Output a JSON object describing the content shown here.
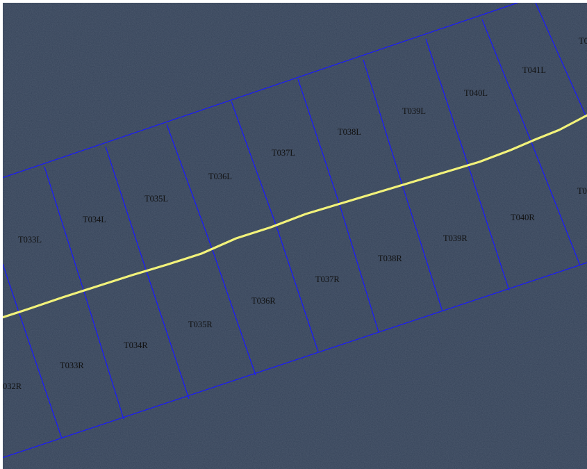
{
  "map": {
    "colors": {
      "background": "#344258",
      "grid_lines": "#1a1aff",
      "centerline": "#f2f27a",
      "labels": "#111111"
    },
    "centerline": {
      "name": ""
    },
    "left_cells": [
      {
        "label": "T033L"
      },
      {
        "label": "T034L"
      },
      {
        "label": "T035L"
      },
      {
        "label": "T036L"
      },
      {
        "label": "T037L"
      },
      {
        "label": "T038L"
      },
      {
        "label": "T039L"
      },
      {
        "label": "T040L"
      },
      {
        "label": "T041L"
      },
      {
        "label": "T0"
      }
    ],
    "right_cells": [
      {
        "label": "032R"
      },
      {
        "label": "T033R"
      },
      {
        "label": "T034R"
      },
      {
        "label": "T035R"
      },
      {
        "label": "T036R"
      },
      {
        "label": "T037R"
      },
      {
        "label": "T038R"
      },
      {
        "label": "T039R"
      },
      {
        "label": "T040R"
      },
      {
        "label": "T0"
      }
    ]
  }
}
